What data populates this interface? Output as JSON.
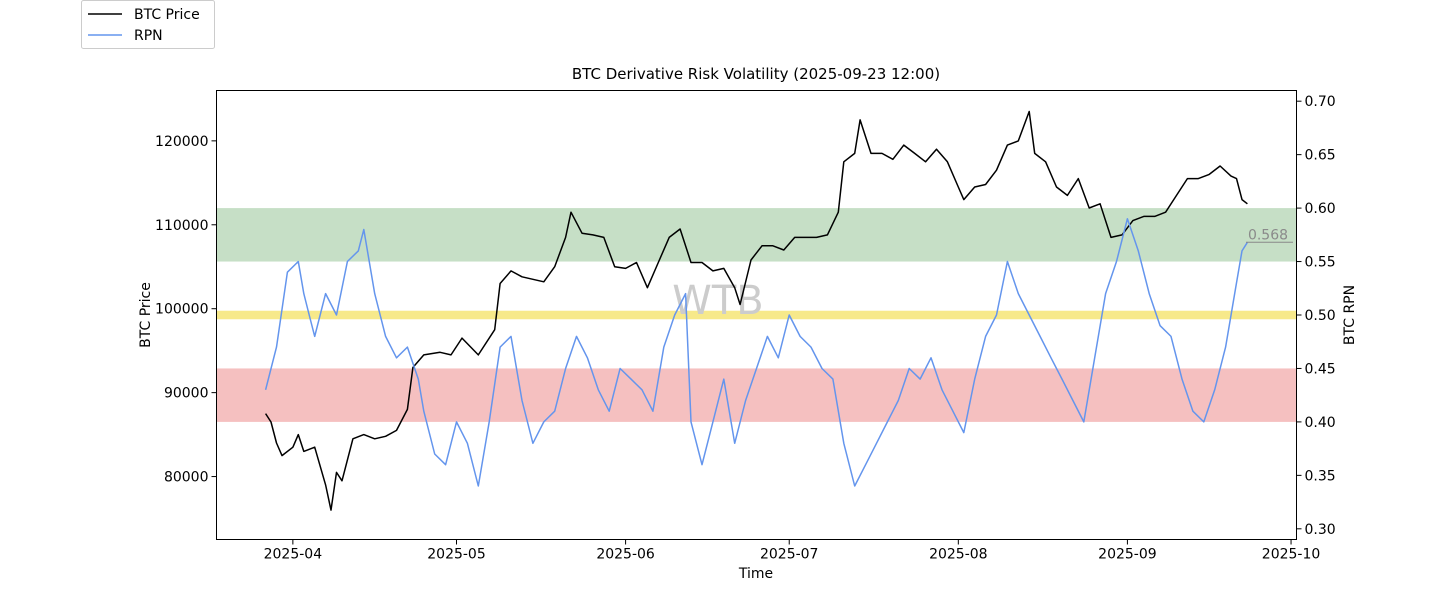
{
  "chart_data": {
    "type": "line",
    "title": "BTC Derivative Risk Volatility (2025-09-23 12:00)",
    "xlabel": "Time",
    "ylabel_left": "BTC Price",
    "ylabel_right": "BTC RPN",
    "watermark": "WTB",
    "x_range": [
      "2025-03-18",
      "2025-10-02"
    ],
    "x_ticks": [
      "2025-04",
      "2025-05",
      "2025-06",
      "2025-07",
      "2025-08",
      "2025-09",
      "2025-10"
    ],
    "y_left_range": [
      72500,
      126000
    ],
    "y_left_ticks": [
      80000,
      90000,
      100000,
      110000,
      120000
    ],
    "y_right_range": [
      0.29,
      0.71
    ],
    "y_right_ticks": [
      0.3,
      0.35,
      0.4,
      0.45,
      0.5,
      0.55,
      0.6,
      0.65,
      0.7
    ],
    "bands_rpn": [
      {
        "from": 0.55,
        "to": 0.6,
        "color": "#c6dfc6"
      },
      {
        "from": 0.496,
        "to": 0.504,
        "color": "#f7e98a"
      },
      {
        "from": 0.4,
        "to": 0.45,
        "color": "#f5c0c0"
      }
    ],
    "current_rpn_label": "0.568",
    "current_rpn": 0.568,
    "legend_position": "upper-left-outside",
    "grid": false,
    "series": [
      {
        "name": "BTC Price",
        "axis": "left",
        "color": "#000000",
        "points": [
          [
            "2025-03-27",
            87500
          ],
          [
            "2025-03-28",
            86500
          ],
          [
            "2025-03-29",
            84000
          ],
          [
            "2025-03-30",
            82500
          ],
          [
            "2025-04-01",
            83500
          ],
          [
            "2025-04-02",
            85000
          ],
          [
            "2025-04-03",
            83000
          ],
          [
            "2025-04-05",
            83500
          ],
          [
            "2025-04-07",
            79000
          ],
          [
            "2025-04-08",
            76000
          ],
          [
            "2025-04-09",
            80500
          ],
          [
            "2025-04-10",
            79500
          ],
          [
            "2025-04-12",
            84500
          ],
          [
            "2025-04-14",
            85000
          ],
          [
            "2025-04-16",
            84500
          ],
          [
            "2025-04-18",
            84800
          ],
          [
            "2025-04-20",
            85500
          ],
          [
            "2025-04-22",
            88000
          ],
          [
            "2025-04-23",
            93000
          ],
          [
            "2025-04-25",
            94500
          ],
          [
            "2025-04-28",
            94800
          ],
          [
            "2025-04-30",
            94500
          ],
          [
            "2025-05-02",
            96500
          ],
          [
            "2025-05-05",
            94500
          ],
          [
            "2025-05-08",
            97500
          ],
          [
            "2025-05-09",
            103000
          ],
          [
            "2025-05-11",
            104500
          ],
          [
            "2025-05-13",
            103800
          ],
          [
            "2025-05-15",
            103500
          ],
          [
            "2025-05-17",
            103200
          ],
          [
            "2025-05-19",
            105000
          ],
          [
            "2025-05-21",
            108500
          ],
          [
            "2025-05-22",
            111500
          ],
          [
            "2025-05-24",
            109000
          ],
          [
            "2025-05-26",
            108800
          ],
          [
            "2025-05-28",
            108500
          ],
          [
            "2025-05-30",
            105000
          ],
          [
            "2025-06-01",
            104800
          ],
          [
            "2025-06-03",
            105500
          ],
          [
            "2025-06-05",
            102500
          ],
          [
            "2025-06-07",
            105500
          ],
          [
            "2025-06-09",
            108500
          ],
          [
            "2025-06-11",
            109500
          ],
          [
            "2025-06-13",
            105500
          ],
          [
            "2025-06-15",
            105500
          ],
          [
            "2025-06-17",
            104500
          ],
          [
            "2025-06-19",
            104800
          ],
          [
            "2025-06-21",
            102500
          ],
          [
            "2025-06-22",
            100500
          ],
          [
            "2025-06-24",
            105800
          ],
          [
            "2025-06-26",
            107500
          ],
          [
            "2025-06-28",
            107500
          ],
          [
            "2025-06-30",
            107000
          ],
          [
            "2025-07-02",
            108500
          ],
          [
            "2025-07-04",
            108500
          ],
          [
            "2025-07-06",
            108500
          ],
          [
            "2025-07-08",
            108800
          ],
          [
            "2025-07-10",
            111500
          ],
          [
            "2025-07-11",
            117500
          ],
          [
            "2025-07-13",
            118500
          ],
          [
            "2025-07-14",
            122500
          ],
          [
            "2025-07-16",
            118500
          ],
          [
            "2025-07-18",
            118500
          ],
          [
            "2025-07-20",
            117800
          ],
          [
            "2025-07-22",
            119500
          ],
          [
            "2025-07-24",
            118500
          ],
          [
            "2025-07-26",
            117500
          ],
          [
            "2025-07-28",
            119000
          ],
          [
            "2025-07-30",
            117500
          ],
          [
            "2025-08-01",
            114500
          ],
          [
            "2025-08-02",
            113000
          ],
          [
            "2025-08-04",
            114500
          ],
          [
            "2025-08-06",
            114800
          ],
          [
            "2025-08-08",
            116500
          ],
          [
            "2025-08-10",
            119500
          ],
          [
            "2025-08-12",
            120000
          ],
          [
            "2025-08-14",
            123500
          ],
          [
            "2025-08-15",
            118500
          ],
          [
            "2025-08-17",
            117500
          ],
          [
            "2025-08-19",
            114500
          ],
          [
            "2025-08-21",
            113500
          ],
          [
            "2025-08-23",
            115500
          ],
          [
            "2025-08-25",
            112000
          ],
          [
            "2025-08-27",
            112500
          ],
          [
            "2025-08-29",
            108500
          ],
          [
            "2025-08-31",
            108800
          ],
          [
            "2025-09-02",
            110500
          ],
          [
            "2025-09-04",
            111000
          ],
          [
            "2025-09-06",
            111000
          ],
          [
            "2025-09-08",
            111500
          ],
          [
            "2025-09-10",
            113500
          ],
          [
            "2025-09-12",
            115500
          ],
          [
            "2025-09-14",
            115500
          ],
          [
            "2025-09-16",
            116000
          ],
          [
            "2025-09-18",
            117000
          ],
          [
            "2025-09-20",
            115800
          ],
          [
            "2025-09-21",
            115500
          ],
          [
            "2025-09-22",
            113000
          ],
          [
            "2025-09-23",
            112500
          ]
        ]
      },
      {
        "name": "RPN",
        "axis": "right",
        "color": "#6495ed",
        "points": [
          [
            "2025-03-27",
            0.43
          ],
          [
            "2025-03-29",
            0.47
          ],
          [
            "2025-03-31",
            0.54
          ],
          [
            "2025-04-02",
            0.55
          ],
          [
            "2025-04-03",
            0.52
          ],
          [
            "2025-04-04",
            0.5
          ],
          [
            "2025-04-05",
            0.48
          ],
          [
            "2025-04-07",
            0.52
          ],
          [
            "2025-04-09",
            0.5
          ],
          [
            "2025-04-11",
            0.55
          ],
          [
            "2025-04-13",
            0.56
          ],
          [
            "2025-04-14",
            0.58
          ],
          [
            "2025-04-16",
            0.52
          ],
          [
            "2025-04-18",
            0.48
          ],
          [
            "2025-04-20",
            0.46
          ],
          [
            "2025-04-22",
            0.47
          ],
          [
            "2025-04-24",
            0.44
          ],
          [
            "2025-04-25",
            0.41
          ],
          [
            "2025-04-27",
            0.37
          ],
          [
            "2025-04-29",
            0.36
          ],
          [
            "2025-05-01",
            0.4
          ],
          [
            "2025-05-03",
            0.38
          ],
          [
            "2025-05-05",
            0.34
          ],
          [
            "2025-05-07",
            0.4
          ],
          [
            "2025-05-09",
            0.47
          ],
          [
            "2025-05-11",
            0.48
          ],
          [
            "2025-05-13",
            0.42
          ],
          [
            "2025-05-15",
            0.38
          ],
          [
            "2025-05-17",
            0.4
          ],
          [
            "2025-05-19",
            0.41
          ],
          [
            "2025-05-21",
            0.45
          ],
          [
            "2025-05-23",
            0.48
          ],
          [
            "2025-05-25",
            0.46
          ],
          [
            "2025-05-27",
            0.43
          ],
          [
            "2025-05-29",
            0.41
          ],
          [
            "2025-05-31",
            0.45
          ],
          [
            "2025-06-02",
            0.44
          ],
          [
            "2025-06-04",
            0.43
          ],
          [
            "2025-06-06",
            0.41
          ],
          [
            "2025-06-08",
            0.47
          ],
          [
            "2025-06-10",
            0.5
          ],
          [
            "2025-06-12",
            0.52
          ],
          [
            "2025-06-13",
            0.4
          ],
          [
            "2025-06-15",
            0.36
          ],
          [
            "2025-06-17",
            0.4
          ],
          [
            "2025-06-19",
            0.44
          ],
          [
            "2025-06-21",
            0.38
          ],
          [
            "2025-06-23",
            0.42
          ],
          [
            "2025-06-25",
            0.45
          ],
          [
            "2025-06-27",
            0.48
          ],
          [
            "2025-06-29",
            0.46
          ],
          [
            "2025-07-01",
            0.5
          ],
          [
            "2025-07-03",
            0.48
          ],
          [
            "2025-07-05",
            0.47
          ],
          [
            "2025-07-07",
            0.45
          ],
          [
            "2025-07-09",
            0.44
          ],
          [
            "2025-07-11",
            0.38
          ],
          [
            "2025-07-13",
            0.34
          ],
          [
            "2025-07-15",
            0.36
          ],
          [
            "2025-07-17",
            0.38
          ],
          [
            "2025-07-19",
            0.4
          ],
          [
            "2025-07-21",
            0.42
          ],
          [
            "2025-07-23",
            0.45
          ],
          [
            "2025-07-25",
            0.44
          ],
          [
            "2025-07-27",
            0.46
          ],
          [
            "2025-07-29",
            0.43
          ],
          [
            "2025-07-31",
            0.41
          ],
          [
            "2025-08-02",
            0.39
          ],
          [
            "2025-08-04",
            0.44
          ],
          [
            "2025-08-06",
            0.48
          ],
          [
            "2025-08-08",
            0.5
          ],
          [
            "2025-08-10",
            0.55
          ],
          [
            "2025-08-12",
            0.52
          ],
          [
            "2025-08-14",
            0.5
          ],
          [
            "2025-08-16",
            0.48
          ],
          [
            "2025-08-18",
            0.46
          ],
          [
            "2025-08-20",
            0.44
          ],
          [
            "2025-08-22",
            0.42
          ],
          [
            "2025-08-24",
            0.4
          ],
          [
            "2025-08-26",
            0.46
          ],
          [
            "2025-08-28",
            0.52
          ],
          [
            "2025-08-30",
            0.55
          ],
          [
            "2025-09-01",
            0.59
          ],
          [
            "2025-09-03",
            0.56
          ],
          [
            "2025-09-05",
            0.52
          ],
          [
            "2025-09-07",
            0.49
          ],
          [
            "2025-09-09",
            0.48
          ],
          [
            "2025-09-11",
            0.44
          ],
          [
            "2025-09-13",
            0.41
          ],
          [
            "2025-09-15",
            0.4
          ],
          [
            "2025-09-17",
            0.43
          ],
          [
            "2025-09-19",
            0.47
          ],
          [
            "2025-09-21",
            0.53
          ],
          [
            "2025-09-22",
            0.56
          ],
          [
            "2025-09-23",
            0.568
          ]
        ]
      }
    ]
  }
}
